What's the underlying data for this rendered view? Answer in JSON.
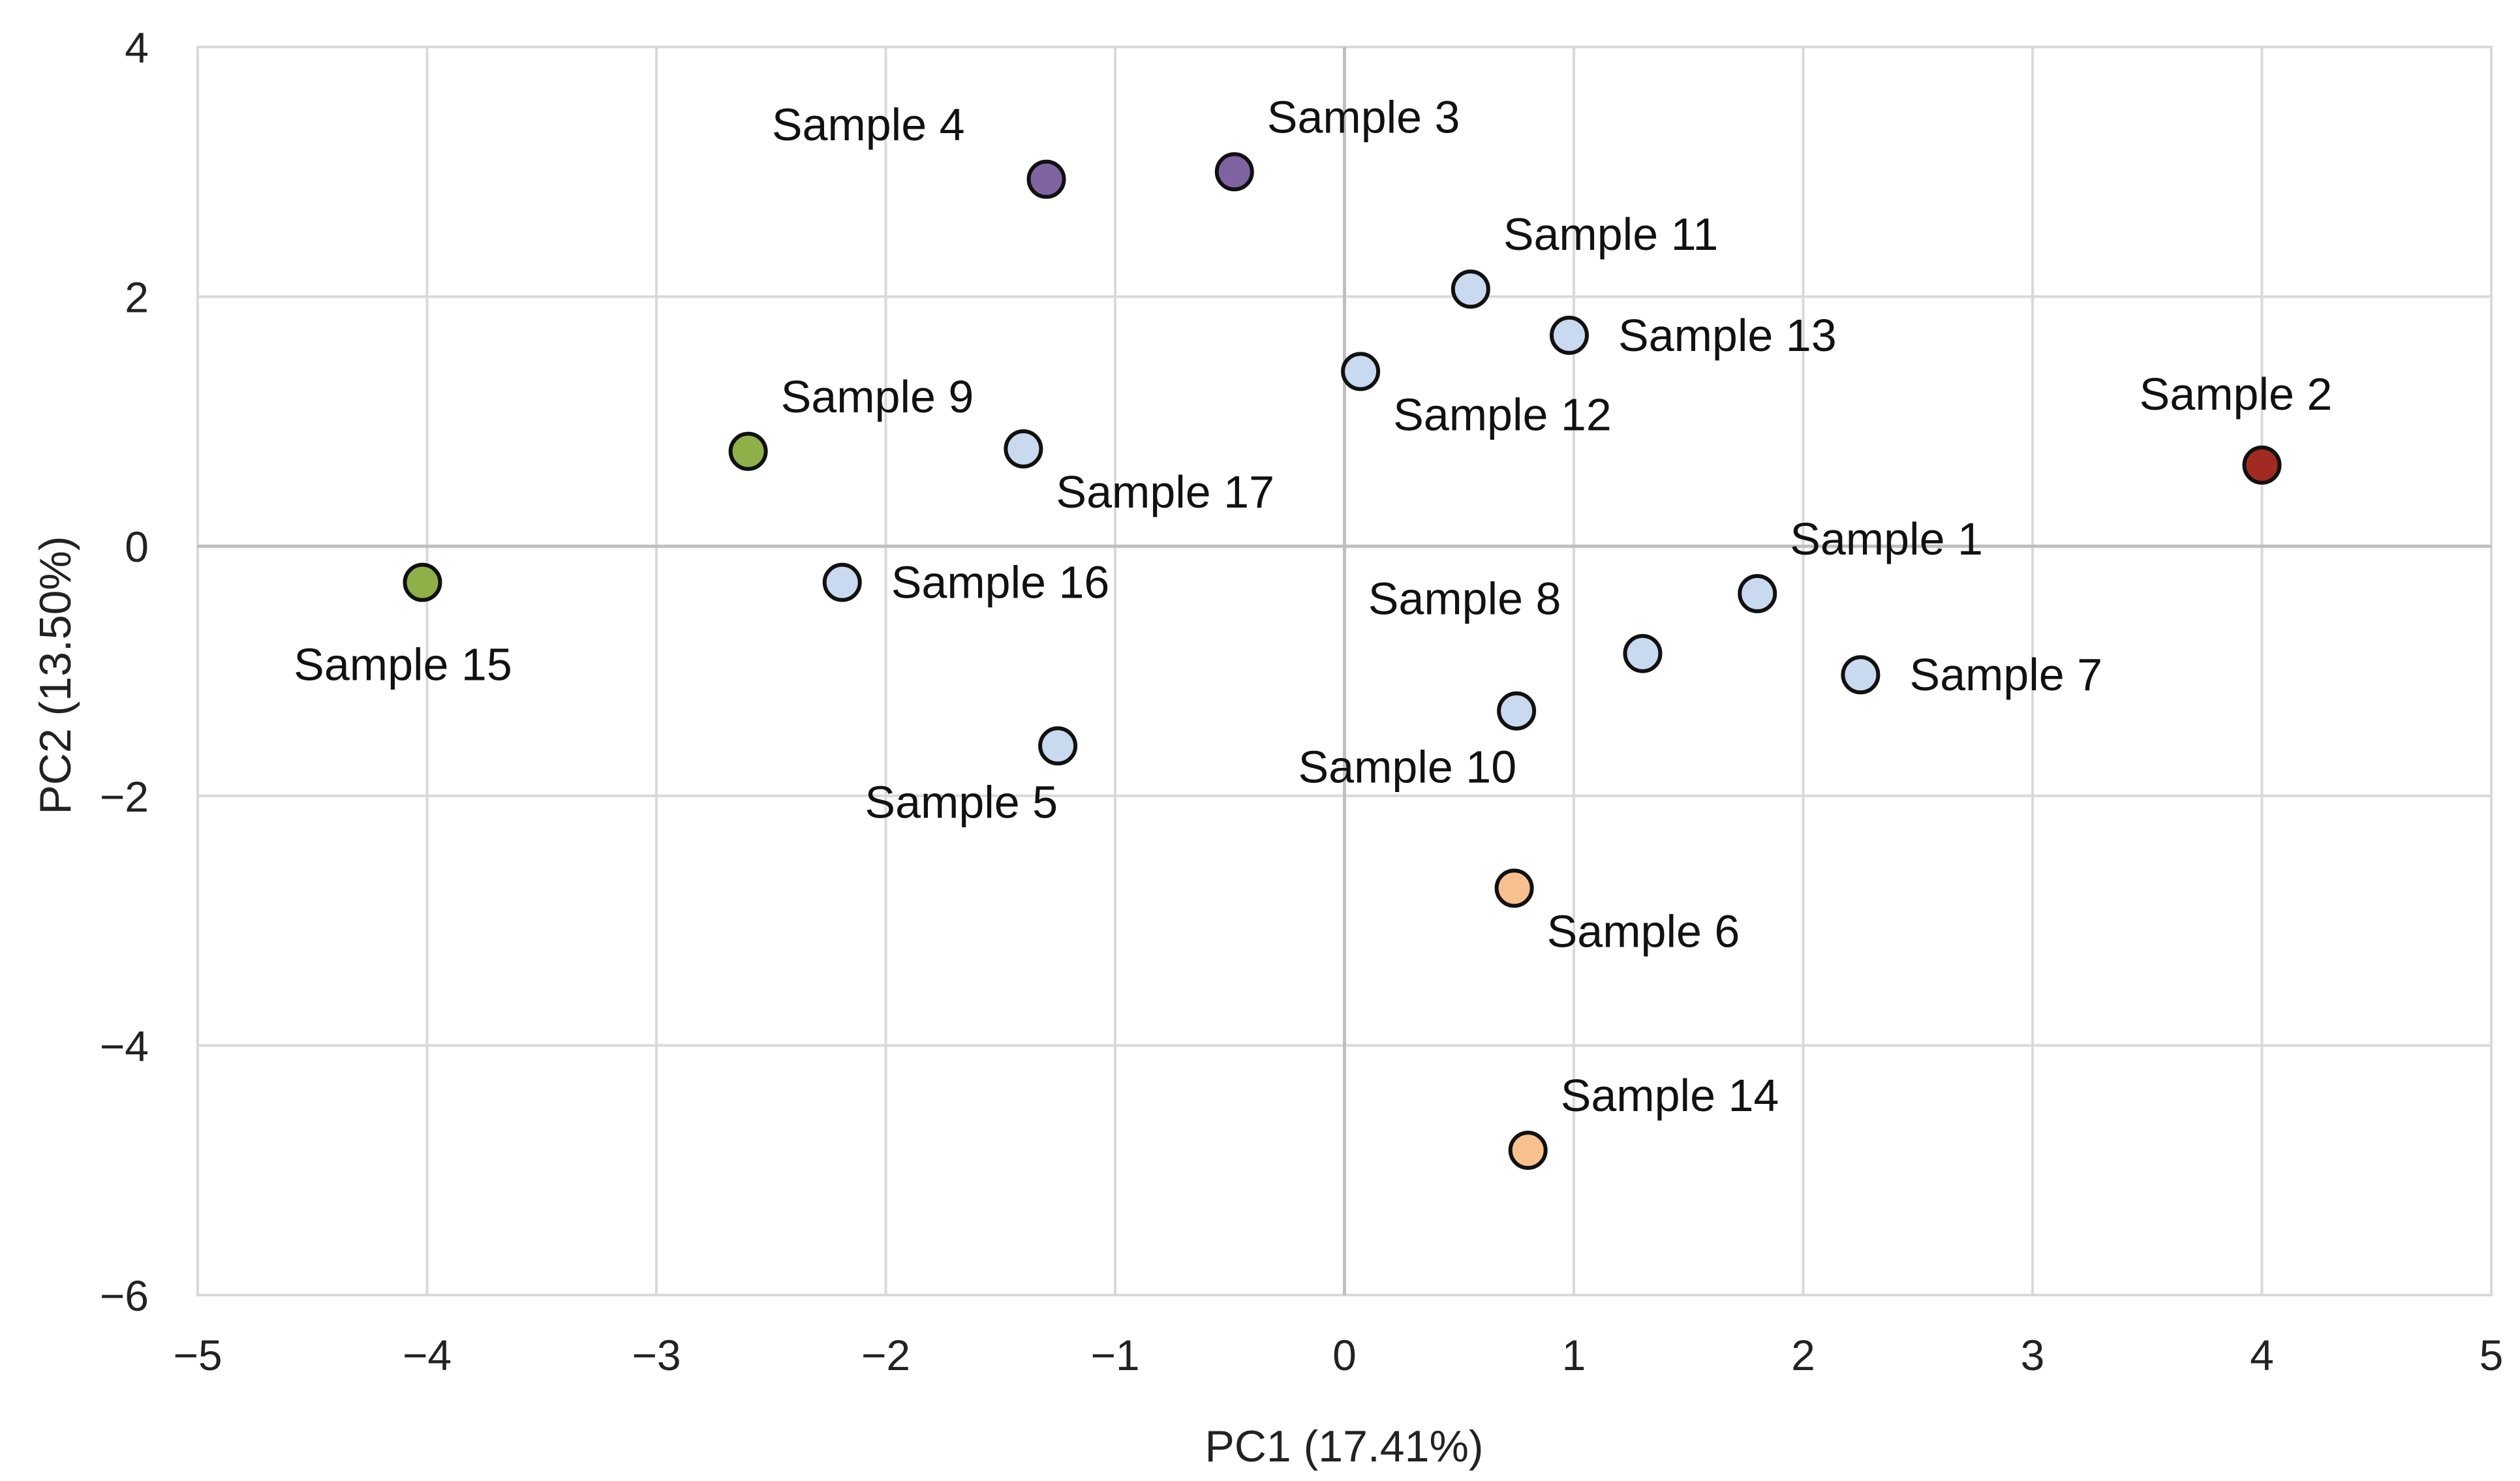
{
  "chart_data": {
    "type": "scatter",
    "title": "",
    "xlabel": "PC1 (17.41%)",
    "ylabel": "PC2 (13.50%)",
    "xlim": [
      -5,
      5
    ],
    "ylim": [
      -6,
      4
    ],
    "x_ticks": [
      -5,
      -4,
      -3,
      -2,
      -1,
      0,
      1,
      2,
      3,
      4,
      5
    ],
    "y_ticks": [
      -6,
      -4,
      -2,
      0,
      2,
      4
    ],
    "x_tick_labels": [
      "−5",
      "−4",
      "−3",
      "−2",
      "−1",
      "0",
      "1",
      "2",
      "3",
      "4",
      "5"
    ],
    "y_tick_labels": [
      "−6",
      "−4",
      "−2",
      "0",
      "2",
      "4"
    ],
    "grid": true,
    "legend": "none",
    "colors": {
      "light_blue": "#c9d9f0",
      "purple": "#8064a2",
      "green": "#8fb049",
      "red": "#a12b22",
      "orange": "#f9c08f"
    },
    "points": [
      {
        "label": "Sample 1",
        "x": 1.8,
        "y": -0.38,
        "color": "#c9d9f0",
        "label_position": "upper-right"
      },
      {
        "label": "Sample 2",
        "x": 4.0,
        "y": 0.65,
        "color": "#a12b22",
        "label_position": "above"
      },
      {
        "label": "Sample 3",
        "x": -0.48,
        "y": 3.0,
        "color": "#8064a2",
        "label_position": "upper-right"
      },
      {
        "label": "Sample 4",
        "x": -1.3,
        "y": 2.94,
        "color": "#8064a2",
        "label_position": "upper-left"
      },
      {
        "label": "Sample 5",
        "x": -1.25,
        "y": -1.6,
        "color": "#c9d9f0",
        "label_position": "lower-left"
      },
      {
        "label": "Sample 6",
        "x": 0.74,
        "y": -2.74,
        "color": "#f9c08f",
        "label_position": "lower-right"
      },
      {
        "label": "Sample 7",
        "x": 2.25,
        "y": -1.03,
        "color": "#c9d9f0",
        "label_position": "right"
      },
      {
        "label": "Sample 8",
        "x": 1.3,
        "y": -0.86,
        "color": "#c9d9f0",
        "label_position": "upper-left"
      },
      {
        "label": "Sample 9",
        "x": -2.6,
        "y": 0.76,
        "color": "#8fb049",
        "label_position": "upper-right"
      },
      {
        "label": "Sample 10",
        "x": 0.75,
        "y": -1.32,
        "color": "#c9d9f0",
        "label_position": "lower-left"
      },
      {
        "label": "Sample 11",
        "x": 0.55,
        "y": 2.06,
        "color": "#c9d9f0",
        "label_position": "upper-right"
      },
      {
        "label": "Sample 12",
        "x": 0.07,
        "y": 1.4,
        "color": "#c9d9f0",
        "label_position": "lower-right"
      },
      {
        "label": "Sample 13",
        "x": 0.98,
        "y": 1.69,
        "color": "#c9d9f0",
        "label_position": "right"
      },
      {
        "label": "Sample 14",
        "x": 0.8,
        "y": -4.84,
        "color": "#f9c08f",
        "label_position": "upper-right"
      },
      {
        "label": "Sample 15",
        "x": -4.02,
        "y": -0.29,
        "color": "#8fb049",
        "label_position": "below"
      },
      {
        "label": "Sample 16",
        "x": -2.19,
        "y": -0.29,
        "color": "#c9d9f0",
        "label_position": "right"
      },
      {
        "label": "Sample 17",
        "x": -1.4,
        "y": 0.78,
        "color": "#c9d9f0",
        "label_position": "lower-right"
      }
    ]
  }
}
